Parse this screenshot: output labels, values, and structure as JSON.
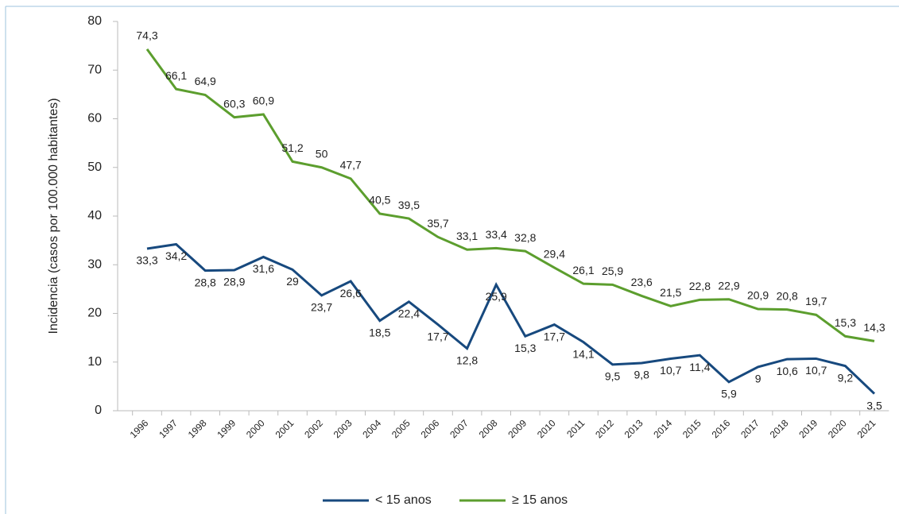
{
  "chart_data": {
    "type": "line",
    "y_label": "Incidencia (casos por 100.000 habitantes)",
    "categories": [
      "1996",
      "1997",
      "1998",
      "1999",
      "2000",
      "2001",
      "2002",
      "2003",
      "2004",
      "2005",
      "2006",
      "2007",
      "2008",
      "2009",
      "2010",
      "2011",
      "2012",
      "2013",
      "2014",
      "2015",
      "2016",
      "2017",
      "2018",
      "2019",
      "2020",
      "2021"
    ],
    "series": [
      {
        "name": "< 15 anos",
        "color": "#17497e",
        "values": [
          33.3,
          34.2,
          28.8,
          28.9,
          31.6,
          29,
          23.7,
          26.6,
          18.5,
          22.4,
          17.7,
          12.8,
          25.9,
          15.3,
          17.7,
          14.1,
          9.5,
          9.8,
          10.7,
          11.4,
          5.9,
          9,
          10.6,
          10.7,
          9.2,
          3.5
        ],
        "value_labels": [
          "33,3",
          "34,2",
          "28,8",
          "28,9",
          "31,6",
          "29",
          "23,7",
          "26,6",
          "18,5",
          "22,4",
          "17,7",
          "12,8",
          "25,9",
          "15,3",
          "17,7",
          "14,1",
          "9,5",
          "9,8",
          "10,7",
          "11,4",
          "5,9",
          "9",
          "10,6",
          "10,7",
          "9,2",
          "3,5"
        ]
      },
      {
        "name": "≥ 15 anos",
        "color": "#5c9e2e",
        "values": [
          74.3,
          66.1,
          64.9,
          60.3,
          60.9,
          51.2,
          50,
          47.7,
          40.5,
          39.5,
          35.7,
          33.1,
          33.4,
          32.8,
          29.4,
          26.1,
          25.9,
          23.6,
          21.5,
          22.8,
          22.9,
          20.9,
          20.8,
          19.7,
          15.3,
          14.3
        ],
        "value_labels": [
          "74,3",
          "66,1",
          "64,9",
          "60,3",
          "60,9",
          "51,2",
          "50",
          "47,7",
          "40,5",
          "39,5",
          "35,7",
          "33,1",
          "33,4",
          "32,8",
          "29,4",
          "26,1",
          "25,9",
          "23,6",
          "21,5",
          "22,8",
          "22,9",
          "20,9",
          "20,8",
          "19,7",
          "15,3",
          "14,3"
        ]
      }
    ],
    "ylim": [
      0,
      80
    ],
    "yticks": [
      0,
      10,
      20,
      30,
      40,
      50,
      60,
      70,
      80
    ]
  }
}
